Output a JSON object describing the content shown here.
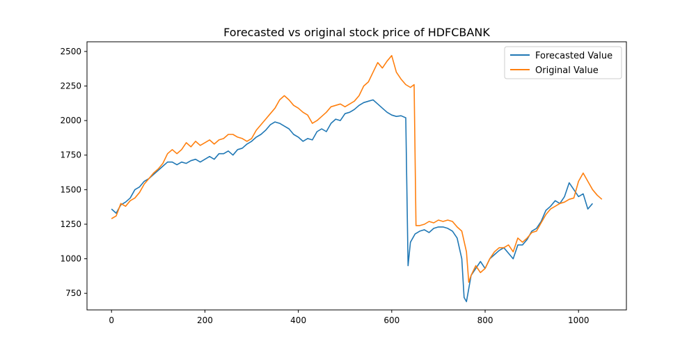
{
  "chart_data": {
    "type": "line",
    "title": "Forecasted vs original stock price of HDFCBANK",
    "xlabel": "",
    "ylabel": "",
    "xlim": [
      -52.5,
      1102.5
    ],
    "ylim": [
      630,
      2570
    ],
    "xticks": [
      0,
      200,
      400,
      600,
      800,
      1000
    ],
    "yticks": [
      750,
      1000,
      1250,
      1500,
      1750,
      2000,
      2250,
      2500
    ],
    "grid": false,
    "legend_position": "top-right",
    "series": [
      {
        "name": "Forecasted Value",
        "color": "#1f77b4",
        "x": [
          0,
          10,
          20,
          30,
          40,
          50,
          60,
          70,
          80,
          90,
          100,
          110,
          120,
          130,
          140,
          150,
          160,
          170,
          180,
          190,
          200,
          210,
          220,
          230,
          240,
          250,
          260,
          270,
          280,
          290,
          300,
          310,
          320,
          330,
          340,
          350,
          360,
          370,
          380,
          390,
          400,
          410,
          420,
          430,
          440,
          450,
          460,
          470,
          480,
          490,
          500,
          510,
          520,
          530,
          540,
          550,
          560,
          570,
          580,
          590,
          600,
          610,
          620,
          630,
          635,
          640,
          650,
          660,
          670,
          680,
          690,
          700,
          710,
          720,
          730,
          740,
          750,
          755,
          760,
          770,
          780,
          790,
          800,
          810,
          820,
          830,
          840,
          850,
          860,
          870,
          880,
          890,
          900,
          910,
          920,
          930,
          940,
          950,
          960,
          970,
          980,
          990,
          1000,
          1010,
          1020,
          1030
        ],
        "y": [
          1360,
          1330,
          1390,
          1410,
          1440,
          1500,
          1520,
          1560,
          1580,
          1610,
          1640,
          1670,
          1700,
          1700,
          1680,
          1700,
          1690,
          1710,
          1720,
          1700,
          1720,
          1740,
          1720,
          1760,
          1760,
          1780,
          1750,
          1790,
          1800,
          1830,
          1850,
          1880,
          1900,
          1930,
          1970,
          1990,
          1980,
          1960,
          1940,
          1900,
          1880,
          1850,
          1870,
          1860,
          1920,
          1940,
          1920,
          1980,
          2010,
          2000,
          2050,
          2060,
          2080,
          2110,
          2130,
          2140,
          2150,
          2120,
          2090,
          2060,
          2040,
          2030,
          2035,
          2020,
          950,
          1120,
          1180,
          1200,
          1210,
          1190,
          1220,
          1230,
          1230,
          1220,
          1200,
          1150,
          1000,
          720,
          690,
          880,
          930,
          980,
          930,
          1000,
          1030,
          1060,
          1080,
          1040,
          1000,
          1100,
          1100,
          1140,
          1200,
          1220,
          1270,
          1350,
          1380,
          1420,
          1400,
          1450,
          1550,
          1500,
          1450,
          1470,
          1360,
          1400
        ]
      },
      {
        "name": "Original Value",
        "color": "#ff7f0e",
        "x": [
          0,
          10,
          20,
          30,
          40,
          50,
          60,
          70,
          80,
          90,
          100,
          110,
          120,
          130,
          140,
          150,
          160,
          170,
          180,
          190,
          200,
          210,
          220,
          230,
          240,
          250,
          260,
          270,
          280,
          290,
          300,
          310,
          320,
          330,
          340,
          350,
          360,
          370,
          380,
          390,
          400,
          410,
          420,
          430,
          440,
          450,
          460,
          470,
          480,
          490,
          500,
          510,
          520,
          530,
          540,
          550,
          560,
          570,
          580,
          590,
          600,
          610,
          620,
          630,
          640,
          648,
          652,
          660,
          670,
          680,
          690,
          700,
          710,
          720,
          730,
          740,
          750,
          760,
          765,
          770,
          780,
          790,
          800,
          810,
          820,
          830,
          840,
          850,
          860,
          870,
          880,
          890,
          900,
          910,
          920,
          930,
          940,
          950,
          960,
          970,
          980,
          990,
          1000,
          1010,
          1020,
          1030,
          1040,
          1050
        ],
        "y": [
          1290,
          1310,
          1400,
          1380,
          1420,
          1440,
          1480,
          1540,
          1580,
          1620,
          1650,
          1690,
          1760,
          1790,
          1760,
          1790,
          1840,
          1810,
          1850,
          1820,
          1840,
          1860,
          1830,
          1860,
          1870,
          1900,
          1900,
          1880,
          1870,
          1850,
          1870,
          1930,
          1970,
          2010,
          2050,
          2090,
          2150,
          2180,
          2150,
          2110,
          2090,
          2060,
          2040,
          1980,
          2000,
          2030,
          2060,
          2100,
          2110,
          2120,
          2100,
          2120,
          2140,
          2180,
          2250,
          2280,
          2350,
          2420,
          2380,
          2430,
          2470,
          2350,
          2300,
          2260,
          2240,
          2260,
          1240,
          1240,
          1250,
          1270,
          1260,
          1280,
          1270,
          1280,
          1270,
          1230,
          1200,
          1050,
          830,
          880,
          950,
          900,
          930,
          1000,
          1050,
          1080,
          1080,
          1100,
          1050,
          1150,
          1120,
          1150,
          1190,
          1200,
          1260,
          1320,
          1360,
          1380,
          1400,
          1410,
          1430,
          1440,
          1560,
          1620,
          1560,
          1500,
          1460,
          1430
        ]
      }
    ]
  }
}
